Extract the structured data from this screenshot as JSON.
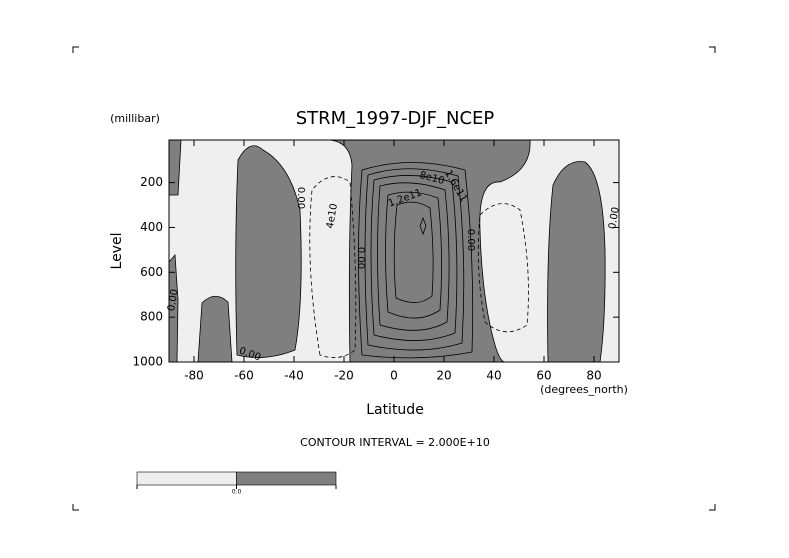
{
  "chart_data": {
    "type": "contour",
    "title": "STRM_1997-DJF_NCEP",
    "xlabel": "Latitude",
    "ylabel": "Level",
    "xunit": "(degrees_north)",
    "yunit": "(millibar)",
    "xlim": [
      -90,
      90
    ],
    "xticks": [
      -80,
      -60,
      -40,
      -20,
      0,
      20,
      40,
      60,
      80
    ],
    "ylim": [
      1000,
      10
    ],
    "yticks": [
      1000,
      800,
      600,
      400,
      200
    ],
    "note": "CONTOUR INTERVAL = 2.000E+10",
    "contour_labels": [
      "0.00",
      "4e10",
      "0.00",
      "1.2e11",
      "8e10",
      "1.6e11",
      "0.00",
      "0.00",
      "0.00",
      "0.00"
    ],
    "colorbar": {
      "colors": [
        "#efefef",
        "#7f7f7f"
      ],
      "labels": [
        "0.0"
      ]
    }
  }
}
